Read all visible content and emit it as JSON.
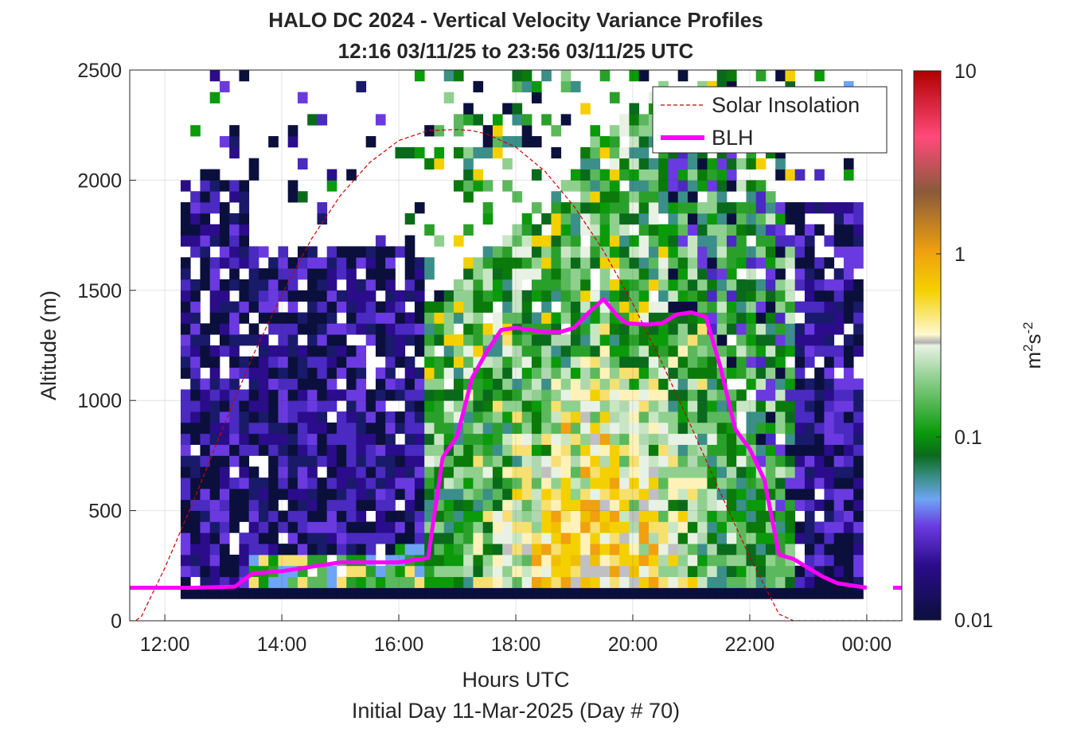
{
  "chart_data": {
    "type": "heatmap",
    "title": "HALO DC 2024 - Vertical Velocity Variance Profiles",
    "subtitle": "12:16 03/11/25 to 23:56 03/11/25  UTC",
    "xlabel": "Hours UTC",
    "xlabel2": "Initial Day 11-Mar-2025 (Day # 70)",
    "ylabel": "Altitude (m)",
    "xlim": [
      11.4,
      24.6
    ],
    "ylim": [
      0,
      2500
    ],
    "x_ticks": [
      12,
      14,
      16,
      18,
      20,
      22,
      24
    ],
    "x_tick_labels": [
      "12:00",
      "14:00",
      "16:00",
      "18:00",
      "20:00",
      "22:00",
      "00:00"
    ],
    "y_ticks": [
      0,
      500,
      1000,
      1500,
      2000,
      2500
    ],
    "y_tick_labels": [
      "0",
      "500",
      "1000",
      "1500",
      "2000",
      "2500"
    ],
    "grid": true,
    "legend_position": "top-right",
    "legend": [
      {
        "name": "Solar Insolation",
        "color": "#cc0000",
        "style": "dashed"
      },
      {
        "name": "BLH",
        "color": "#ff00ff",
        "style": "solid"
      }
    ],
    "colorbar": {
      "label_base": "m",
      "label_exp1": "2",
      "label_mid": "s",
      "label_exp2": "-2",
      "scale": "log",
      "range": [
        0.01,
        10
      ],
      "ticks": [
        0.01,
        0.1,
        1,
        10
      ],
      "tick_labels": [
        "0.01",
        "0.1",
        "1",
        "10"
      ]
    },
    "heatmap": {
      "time_start": 12.27,
      "time_end": 23.93,
      "column_width_hours": 0.1667,
      "bin_height_m": 50,
      "altitude_min": 100,
      "altitude_max": 2500
    },
    "series": [
      {
        "name": "BLH",
        "x": [
          11.4,
          12.5,
          13.2,
          13.5,
          14.0,
          14.5,
          15.0,
          15.5,
          16.0,
          16.5,
          16.75,
          17.0,
          17.25,
          17.5,
          17.75,
          18.0,
          18.25,
          18.5,
          18.75,
          19.0,
          19.25,
          19.5,
          19.75,
          19.9,
          20.25,
          20.5,
          20.75,
          21.0,
          21.25,
          21.5,
          21.75,
          22.0,
          22.25,
          22.5,
          22.75,
          23.0,
          23.25,
          23.5,
          23.75,
          24.0
        ],
        "y": [
          150,
          150,
          155,
          215,
          225,
          245,
          265,
          265,
          265,
          285,
          740,
          840,
          1100,
          1220,
          1320,
          1330,
          1320,
          1310,
          1310,
          1330,
          1400,
          1460,
          1380,
          1350,
          1345,
          1350,
          1390,
          1400,
          1380,
          1150,
          870,
          780,
          640,
          300,
          280,
          240,
          200,
          170,
          160,
          150
        ]
      },
      {
        "name": "Solar Insolation",
        "x": [
          11.4,
          11.5,
          11.6,
          12.0,
          12.5,
          13.0,
          13.5,
          14.0,
          14.5,
          15.0,
          15.5,
          16.0,
          16.5,
          17.0,
          17.25,
          17.5,
          18.0,
          18.5,
          19.0,
          19.5,
          20.0,
          20.5,
          21.0,
          21.5,
          22.0,
          22.5,
          22.75,
          23.0,
          23.2,
          24.6
        ],
        "y": [
          0,
          0,
          20,
          240,
          550,
          880,
          1200,
          1480,
          1730,
          1930,
          2080,
          2180,
          2225,
          2230,
          2225,
          2210,
          2150,
          2040,
          1880,
          1680,
          1440,
          1170,
          880,
          580,
          290,
          30,
          0,
          0,
          0,
          0
        ]
      }
    ]
  }
}
